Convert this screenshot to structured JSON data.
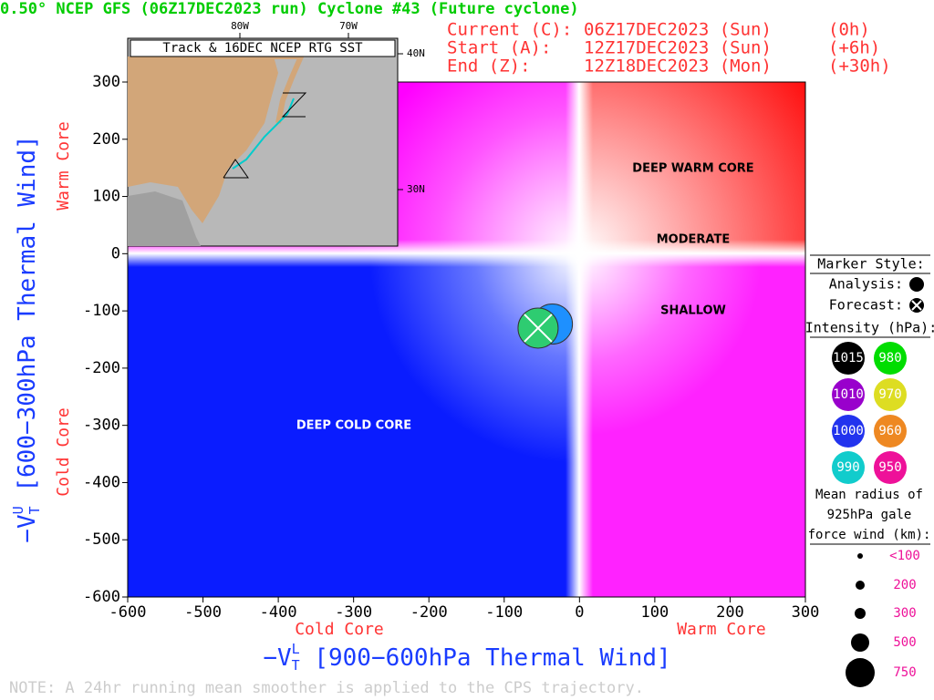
{
  "chart_data": {
    "type": "scatter",
    "title": "0.50° NCEP GFS (06Z17DEC2023 run) Cyclone #43 (Future cyclone)",
    "info": [
      {
        "label": "Current (C):",
        "date": "06Z17DEC2023 (Sun)",
        "offset": "(0h)"
      },
      {
        "label": "Start (A):",
        "date": "12Z17DEC2023 (Sun)",
        "offset": "(+6h)"
      },
      {
        "label": "End (Z):",
        "date": "12Z18DEC2023 (Mon)",
        "offset": "(+30h)"
      }
    ],
    "x_label": {
      "symbol": "−V",
      "sub": "T",
      "sup": "L",
      "text": " [900−600hPa Thermal Wind]"
    },
    "y_label": {
      "symbol": "−V",
      "sub": "T",
      "sup": "U",
      "text": " [600−300hPa Thermal Wind]"
    },
    "x_core_labels": [
      "Cold Core",
      "Warm Core"
    ],
    "y_core_labels": [
      "Warm Core",
      "Cold Core"
    ],
    "xlim": [
      -600,
      300
    ],
    "ylim": [
      -600,
      300
    ],
    "xticks": [
      -600,
      -500,
      -400,
      -300,
      -200,
      -100,
      0,
      100,
      200,
      300
    ],
    "yticks": [
      -600,
      -500,
      -400,
      -300,
      -200,
      -100,
      0,
      100,
      200,
      300
    ],
    "regions": [
      "DEEP WARM CORE",
      "MODERATE",
      "SHALLOW",
      "DEEP COLD CORE"
    ],
    "points": {
      "x": [
        -36,
        -55
      ],
      "y": [
        -123,
        -130
      ],
      "colors": [
        "#1e90ff",
        "#2ecc71"
      ]
    },
    "inset": {
      "title": "Track & 16DEC NCEP RTG SST",
      "lon_ticks": [
        "80W",
        "70W"
      ],
      "lat_ticks": [
        "40N",
        "30N"
      ]
    },
    "legend": {
      "marker_title": "Marker Style:",
      "analysis": "Analysis:",
      "forecast": "Forecast:",
      "intensity_title": "Intensity (hPa):",
      "intensity": [
        {
          "label": "1015",
          "color": "#000000"
        },
        {
          "label": "980",
          "color": "#00dd00"
        },
        {
          "label": "1010",
          "color": "#9900cc"
        },
        {
          "label": "970",
          "color": "#dddd22"
        },
        {
          "label": "1000",
          "color": "#2233ee"
        },
        {
          "label": "960",
          "color": "#ee8822"
        },
        {
          "label": "990",
          "color": "#11cccc"
        },
        {
          "label": "950",
          "color": "#ee1199"
        }
      ],
      "size_title": [
        "Mean radius of",
        "925hPa gale",
        "force wind (km):"
      ],
      "sizes": [
        "<100",
        "200",
        "300",
        "500",
        "750"
      ]
    },
    "note": "NOTE:  A 24hr running mean smoother is applied to the CPS trajectory."
  }
}
